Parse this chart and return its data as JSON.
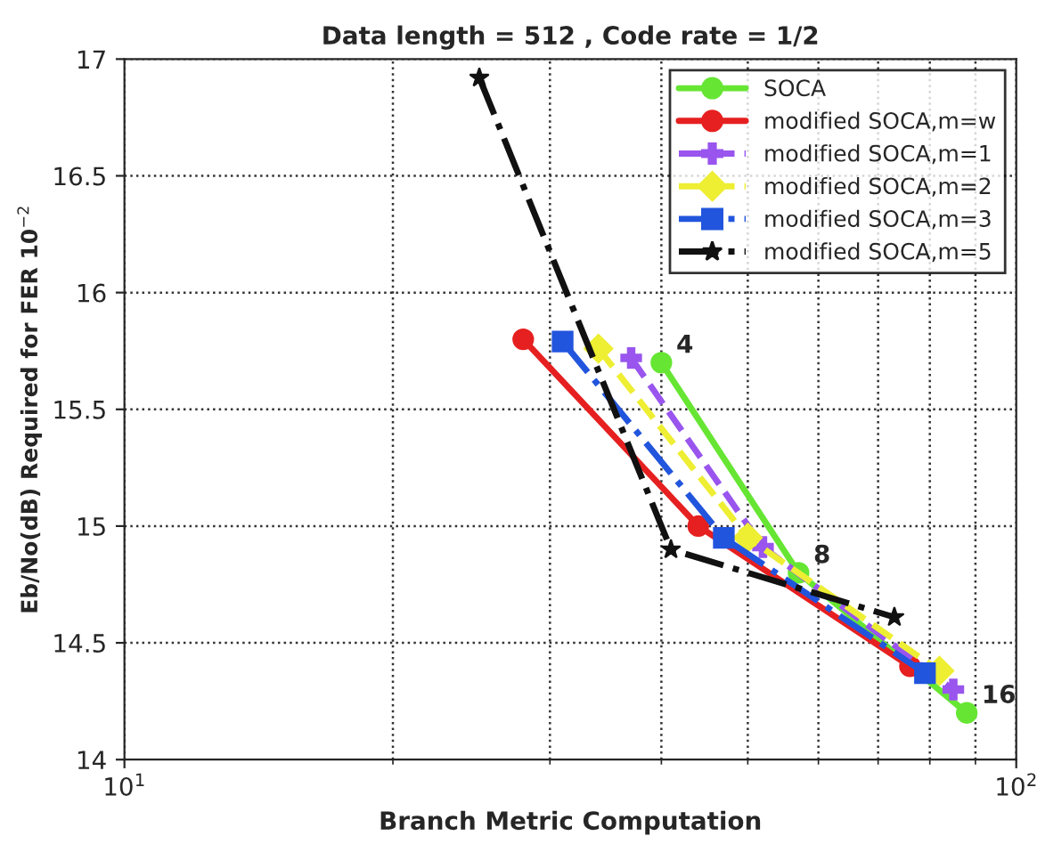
{
  "chart_data": {
    "type": "line",
    "title": "Data length = 512 , Code rate = 1/2",
    "xlabel": "Branch Metric Computation",
    "ylabel": "Eb/No(dB) Required for FER 10$^{−2}$",
    "log": "x",
    "xlim": [
      10,
      100
    ],
    "xticks": [
      {
        "value": 10,
        "label": "10$^{1}$"
      },
      {
        "value": 100,
        "label": "10$^{2}$"
      }
    ],
    "ylim": [
      14,
      17
    ],
    "yticks": [
      14,
      14.5,
      15,
      15.5,
      16,
      16.5,
      17
    ],
    "grid": true,
    "legend": "top right",
    "series": [
      {
        "name": "SOCA",
        "color": "#66e633",
        "marker": "circle",
        "line_style": "solid",
        "x": [
          40,
          57,
          88
        ],
        "values": [
          15.7,
          14.8,
          14.2
        ]
      },
      {
        "name": "modified SOCA,m=w",
        "color": "#e62020",
        "marker": "circle",
        "line_style": "solid",
        "x": [
          28,
          44,
          76
        ],
        "values": [
          15.8,
          15.0,
          14.4
        ]
      },
      {
        "name": "modified SOCA,m=1",
        "color": "#9955ee",
        "marker": "cross",
        "line_style": "dashed",
        "x": [
          37,
          52,
          85
        ],
        "values": [
          15.72,
          14.91,
          14.3
        ]
      },
      {
        "name": "modified SOCA,m=2",
        "color": "#eeee33",
        "marker": "diamond",
        "line_style": "dashed",
        "x": [
          34,
          50,
          82
        ],
        "values": [
          15.76,
          14.95,
          14.38
        ]
      },
      {
        "name": "modified SOCA,m=3",
        "color": "#2255dd",
        "marker": "square",
        "line_style": "dashdot",
        "x": [
          31,
          47,
          79
        ],
        "values": [
          15.79,
          14.95,
          14.37
        ]
      },
      {
        "name": "modified SOCA,m=5",
        "color": "#111111",
        "marker": "star",
        "line_style": "dashdot",
        "x": [
          25,
          41,
          73
        ],
        "values": [
          16.92,
          14.9,
          14.61
        ]
      }
    ],
    "annotations": [
      {
        "text": "4",
        "x": 40,
        "y": 15.7
      },
      {
        "text": "8",
        "x": 57,
        "y": 14.8
      },
      {
        "text": "16",
        "x": 88,
        "y": 14.2
      }
    ]
  }
}
